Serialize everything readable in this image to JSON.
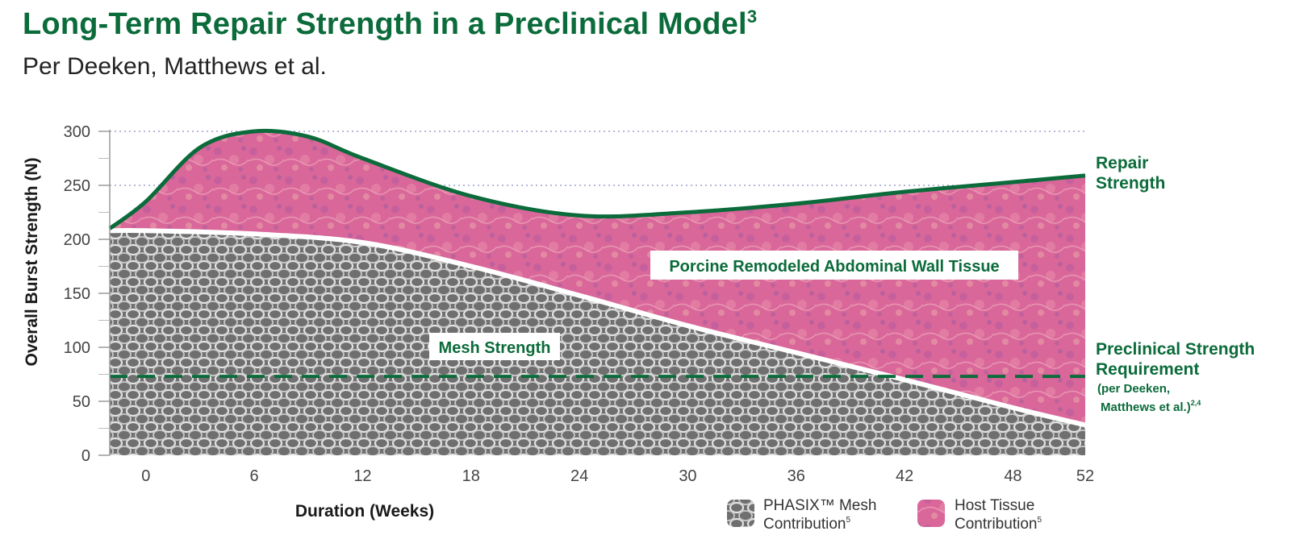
{
  "title": "Long-Term Repair Strength in a Preclinical Model",
  "title_sup": "3",
  "subtitle": "Per Deeken, Matthews et al.",
  "colors": {
    "brand_green": "#0b6b3a",
    "tissue_pink": "#d9679a",
    "mesh_gray": "#7a7a7a"
  },
  "chart_data": {
    "type": "area",
    "xlabel": "Duration (Weeks)",
    "ylabel": "Overall Burst Strength (N)",
    "x_ticks": [
      0,
      6,
      12,
      18,
      24,
      30,
      36,
      42,
      48,
      52
    ],
    "y_ticks": [
      0,
      50,
      100,
      150,
      200,
      250,
      300
    ],
    "xlim": [
      -2,
      52
    ],
    "ylim": [
      0,
      300
    ],
    "grid": "horizontal dotted",
    "series": [
      {
        "name": "Repair Strength",
        "x": [
          -2,
          0,
          3,
          6,
          9,
          12,
          18,
          24,
          30,
          36,
          42,
          48,
          52
        ],
        "values": [
          210,
          235,
          285,
          300,
          295,
          275,
          240,
          222,
          225,
          233,
          244,
          253,
          259
        ]
      },
      {
        "name": "Mesh Strength",
        "x": [
          -2,
          0,
          6,
          12,
          18,
          24,
          30,
          36,
          42,
          48,
          52
        ],
        "values": [
          208,
          208,
          205,
          197,
          175,
          148,
          120,
          95,
          70,
          44,
          28
        ]
      }
    ],
    "threshold": {
      "name": "Preclinical Strength Requirement",
      "value": 73
    },
    "annotations": {
      "repair_label_1": "Repair",
      "repair_label_2": "Strength",
      "tissue_label": "Porcine Remodeled Abdominal Wall Tissue",
      "mesh_label": "Mesh Strength",
      "req_label_1": "Preclinical Strength",
      "req_label_2": "Requirement",
      "req_label_3": "(per Deeken,",
      "req_label_4": "Matthews et al.)",
      "req_label_sup": "2,4"
    },
    "legend": [
      {
        "line1": "PHASIX™ Mesh",
        "line2": "Contribution",
        "sup": "5"
      },
      {
        "line1": "Host Tissue",
        "line2": "Contribution",
        "sup": "5"
      }
    ]
  }
}
